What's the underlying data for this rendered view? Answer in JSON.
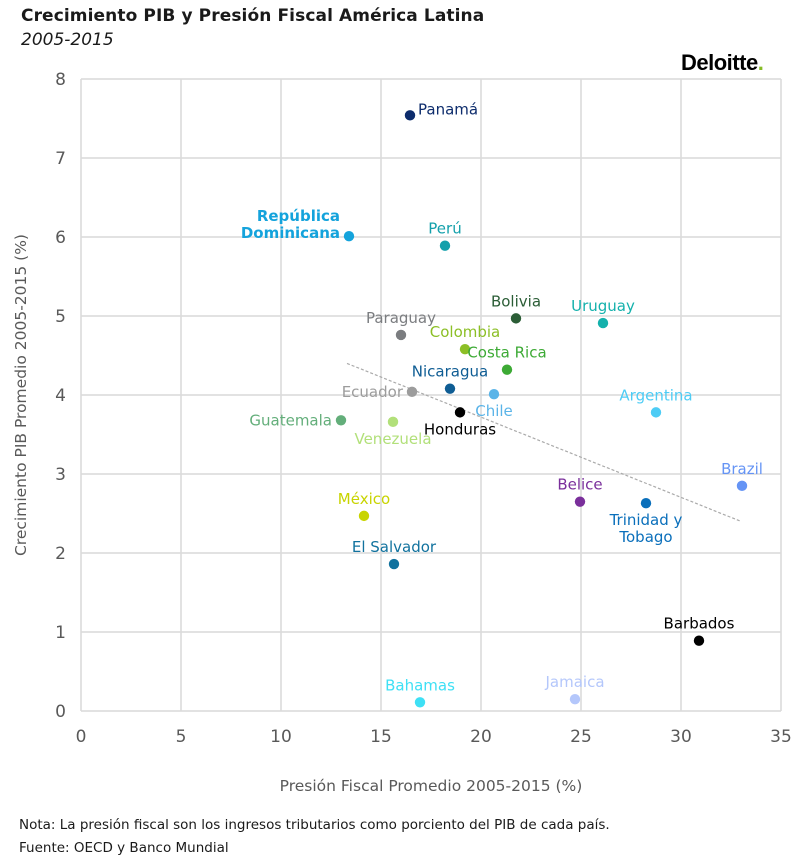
{
  "brand": {
    "name": "Deloitte",
    "dot": ".",
    "dot_color": "#86bc25"
  },
  "footnote": {
    "note": "Nota: La presión fiscal son los ingresos tributarios como porciento del PIB de cada país.",
    "source": "Fuente: OECD y Banco Mundial"
  },
  "chart_data": {
    "type": "scatter",
    "title": "Crecimiento PIB y Presión Fiscal América Latina",
    "subtitle": "2005-2015",
    "xlabel": "Presión Fiscal Promedio 2005-2015 (%)",
    "ylabel": "Crecimiento PIB Promedio 2005-2015 (%)",
    "xlim": [
      0,
      35
    ],
    "ylim": [
      0,
      8
    ],
    "xticks": [
      0,
      5,
      10,
      15,
      20,
      25,
      30,
      35
    ],
    "yticks": [
      0,
      1,
      2,
      3,
      4,
      5,
      6,
      7,
      8
    ],
    "grid": true,
    "legend": "none",
    "trendline": {
      "style": "dashed",
      "color": "#aaaaaa",
      "x": [
        13.3,
        33.0
      ],
      "y": [
        4.4,
        2.4
      ]
    },
    "points": [
      {
        "name": "Panamá",
        "x": 16.45,
        "y": 7.54,
        "color": "#0d2c6c",
        "label_pos": "right",
        "bold": false
      },
      {
        "name": "República\nDominicana",
        "x": 13.4,
        "y": 6.01,
        "color": "#14a3dc",
        "label_pos": "left",
        "bold": true
      },
      {
        "name": "Perú",
        "x": 18.2,
        "y": 5.89,
        "color": "#13a0ab",
        "label_pos": "top",
        "bold": false
      },
      {
        "name": "Paraguay",
        "x": 16.0,
        "y": 4.76,
        "color": "#7b7d80",
        "label_pos": "top",
        "bold": false
      },
      {
        "name": "Bolivia",
        "x": 21.75,
        "y": 4.97,
        "color": "#2b5d36",
        "label_pos": "top",
        "bold": false
      },
      {
        "name": "Uruguay",
        "x": 26.1,
        "y": 4.91,
        "color": "#14b1ac",
        "label_pos": "top",
        "bold": false
      },
      {
        "name": "Colombia",
        "x": 19.2,
        "y": 4.58,
        "color": "#8cbf26",
        "label_pos": "top",
        "bold": false
      },
      {
        "name": "Costa Rica",
        "x": 21.3,
        "y": 4.32,
        "color": "#3daa35",
        "label_pos": "top",
        "bold": false
      },
      {
        "name": "Nicaragua",
        "x": 18.45,
        "y": 4.08,
        "color": "#0f5d94",
        "label_pos": "top",
        "bold": false
      },
      {
        "name": "Ecuador",
        "x": 16.55,
        "y": 4.04,
        "color": "#9c9c9c",
        "label_pos": "left",
        "bold": false
      },
      {
        "name": "Chile",
        "x": 20.65,
        "y": 4.01,
        "color": "#5ab4e8",
        "label_pos": "bottom",
        "bold": false
      },
      {
        "name": "Honduras",
        "x": 18.95,
        "y": 3.78,
        "color": "#000000",
        "label_pos": "bottom",
        "bold": false
      },
      {
        "name": "Guatemala",
        "x": 13.0,
        "y": 3.68,
        "color": "#63ae7a",
        "label_pos": "left",
        "bold": false
      },
      {
        "name": "Venezuela",
        "x": 15.6,
        "y": 3.66,
        "color": "#b2e07a",
        "label_pos": "bottom",
        "bold": false
      },
      {
        "name": "Argentina",
        "x": 28.75,
        "y": 3.78,
        "color": "#4dccf5",
        "label_pos": "top",
        "bold": false
      },
      {
        "name": "Belice",
        "x": 24.95,
        "y": 2.65,
        "color": "#7a2f9b",
        "label_pos": "top",
        "bold": false
      },
      {
        "name": "Trinidad y\nTobago",
        "x": 28.25,
        "y": 2.63,
        "color": "#0a6fbb",
        "label_pos": "bottom",
        "bold": false
      },
      {
        "name": "Brazil",
        "x": 33.05,
        "y": 2.85,
        "color": "#6594f5",
        "label_pos": "top",
        "bold": false
      },
      {
        "name": "México",
        "x": 14.15,
        "y": 2.47,
        "color": "#c8d400",
        "label_pos": "top",
        "bold": false
      },
      {
        "name": "El Salvador",
        "x": 15.65,
        "y": 1.86,
        "color": "#11729e",
        "label_pos": "top",
        "bold": false
      },
      {
        "name": "Barbados",
        "x": 30.9,
        "y": 0.89,
        "color": "#000000",
        "label_pos": "top",
        "bold": false
      },
      {
        "name": "Bahamas",
        "x": 16.95,
        "y": 0.11,
        "color": "#3ee0f5",
        "label_pos": "top",
        "bold": false
      },
      {
        "name": "Jamaica",
        "x": 24.7,
        "y": 0.15,
        "color": "#b4c7fb",
        "label_pos": "top",
        "bold": false
      }
    ]
  }
}
